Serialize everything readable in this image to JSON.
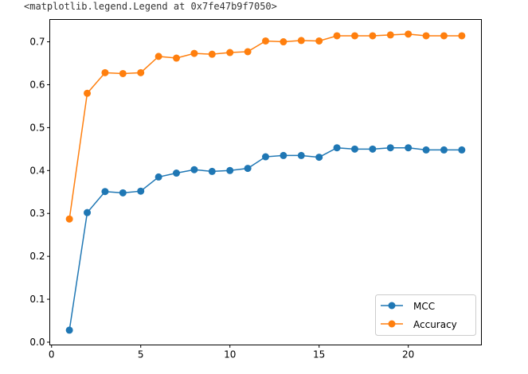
{
  "output_text": "<matplotlib.legend.Legend at 0x7fe47b9f7050>",
  "chart_data": {
    "type": "line",
    "title": "",
    "xlabel": "",
    "ylabel": "",
    "xlim": [
      -0.1,
      24.1
    ],
    "ylim": [
      -0.0065,
      0.752
    ],
    "xticks": [
      0,
      5,
      10,
      15,
      20
    ],
    "xtick_labels": [
      "0",
      "5",
      "10",
      "15",
      "20"
    ],
    "yticks": [
      0.0,
      0.1,
      0.2,
      0.3,
      0.4,
      0.5,
      0.6,
      0.7
    ],
    "ytick_labels": [
      "0.0",
      "0.1",
      "0.2",
      "0.3",
      "0.4",
      "0.5",
      "0.6",
      "0.7"
    ],
    "grid": false,
    "legend_position": "lower-right",
    "marker": "circle",
    "x": [
      1,
      2,
      3,
      4,
      5,
      6,
      7,
      8,
      9,
      10,
      11,
      12,
      13,
      14,
      15,
      16,
      17,
      18,
      19,
      20,
      21,
      22,
      23
    ],
    "series": [
      {
        "name": "MCC",
        "color": "#1f77b4",
        "values": [
          0.028,
          0.302,
          0.351,
          0.348,
          0.352,
          0.385,
          0.394,
          0.402,
          0.398,
          0.4,
          0.405,
          0.432,
          0.435,
          0.435,
          0.431,
          0.453,
          0.45,
          0.45,
          0.453,
          0.453,
          0.448,
          0.448,
          0.448
        ]
      },
      {
        "name": "Accuracy",
        "color": "#ff7f0e",
        "values": [
          0.287,
          0.58,
          0.628,
          0.626,
          0.628,
          0.666,
          0.662,
          0.673,
          0.671,
          0.675,
          0.677,
          0.702,
          0.7,
          0.703,
          0.702,
          0.714,
          0.714,
          0.714,
          0.716,
          0.718,
          0.714,
          0.714,
          0.714
        ]
      }
    ]
  }
}
